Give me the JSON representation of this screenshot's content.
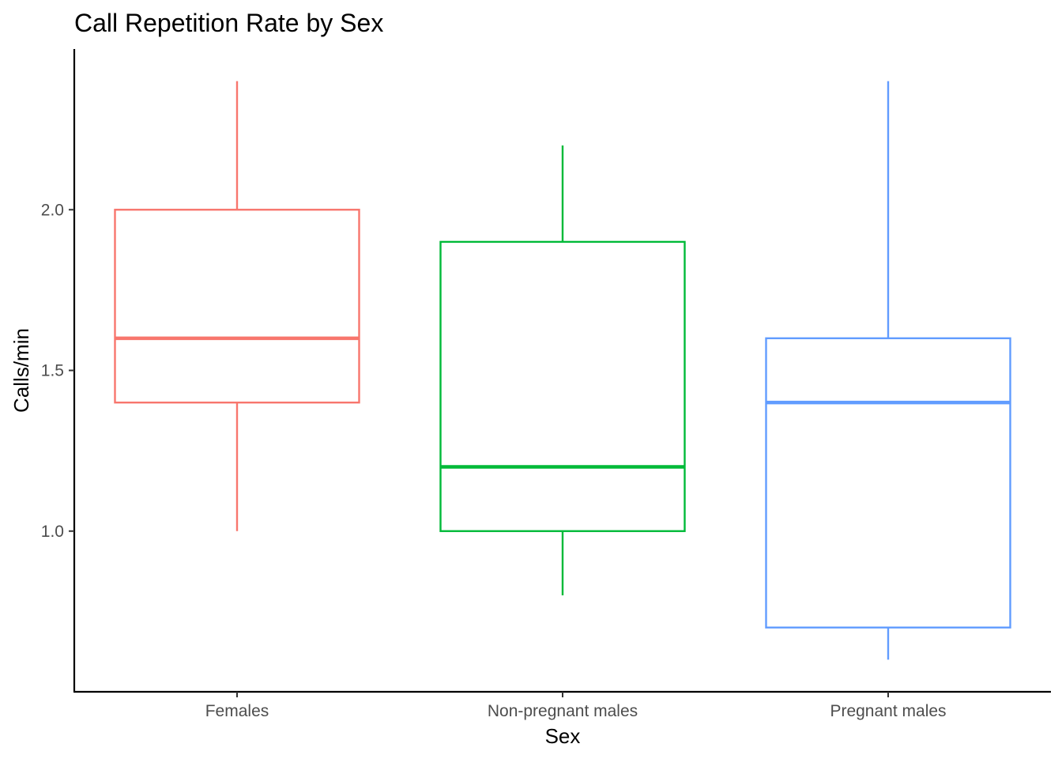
{
  "chart_data": {
    "type": "boxplot",
    "title": "Call Repetition Rate by Sex",
    "xlabel": "Sex",
    "ylabel": "Calls/min",
    "ylim": [
      0.5,
      2.5
    ],
    "yticks": [
      1.0,
      1.5,
      2.0
    ],
    "ytick_labels": [
      "1.0",
      "1.5",
      "2.0"
    ],
    "grid": false,
    "legend": "none",
    "categories": [
      "Females",
      "Non-pregnant males",
      "Pregnant males"
    ],
    "boxes": [
      {
        "category": "Females",
        "min": 1.0,
        "q1": 1.4,
        "median": 1.6,
        "q3": 2.0,
        "max": 2.4,
        "color": "#F8766D"
      },
      {
        "category": "Non-pregnant males",
        "min": 0.8,
        "q1": 1.0,
        "median": 1.2,
        "q3": 1.9,
        "max": 2.2,
        "color": "#00BA38"
      },
      {
        "category": "Pregnant males",
        "min": 0.6,
        "q1": 0.7,
        "median": 1.4,
        "q3": 1.6,
        "max": 2.4,
        "color": "#619CFF"
      }
    ]
  }
}
